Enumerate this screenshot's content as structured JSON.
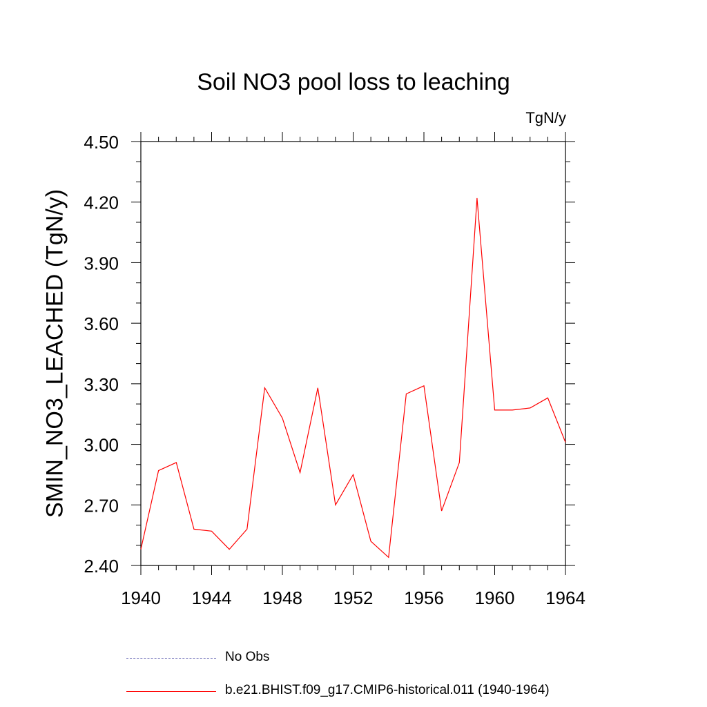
{
  "chart_data": {
    "type": "line",
    "title": "Soil NO3 pool loss to leaching",
    "units_label": "TgN/y",
    "ylabel": "SMIN_NO3_LEACHED  (TgN/y)",
    "xlabel": "",
    "xlim": [
      1940,
      1964
    ],
    "ylim": [
      2.4,
      4.5
    ],
    "x_ticks": [
      "1940",
      "1944",
      "1948",
      "1952",
      "1956",
      "1960",
      "1964"
    ],
    "y_ticks": [
      "2.40",
      "2.70",
      "3.00",
      "3.30",
      "3.60",
      "3.90",
      "4.20",
      "4.50"
    ],
    "grid": false,
    "legend_position": "bottom",
    "series": [
      {
        "name": "b.e21.BHIST.f09_g17.CMIP6-historical.011 (1940-1964)",
        "color": "#ff0000",
        "style": "solid",
        "x": [
          1940,
          1941,
          1942,
          1943,
          1944,
          1945,
          1946,
          1947,
          1948,
          1949,
          1950,
          1951,
          1952,
          1953,
          1954,
          1955,
          1956,
          1957,
          1958,
          1959,
          1960,
          1961,
          1962,
          1963,
          1964
        ],
        "y": [
          2.48,
          2.87,
          2.91,
          2.58,
          2.57,
          2.48,
          2.58,
          3.28,
          3.13,
          2.86,
          3.28,
          2.7,
          2.85,
          2.52,
          2.44,
          3.25,
          3.29,
          2.67,
          2.91,
          4.22,
          3.17,
          3.17,
          3.18,
          3.23,
          3.01
        ]
      }
    ],
    "legend": [
      {
        "label": "No Obs",
        "color": "#8080c0",
        "style": "dashed"
      },
      {
        "label": "b.e21.BHIST.f09_g17.CMIP6-historical.011 (1940-1964)",
        "color": "#ff0000",
        "style": "solid"
      }
    ]
  }
}
